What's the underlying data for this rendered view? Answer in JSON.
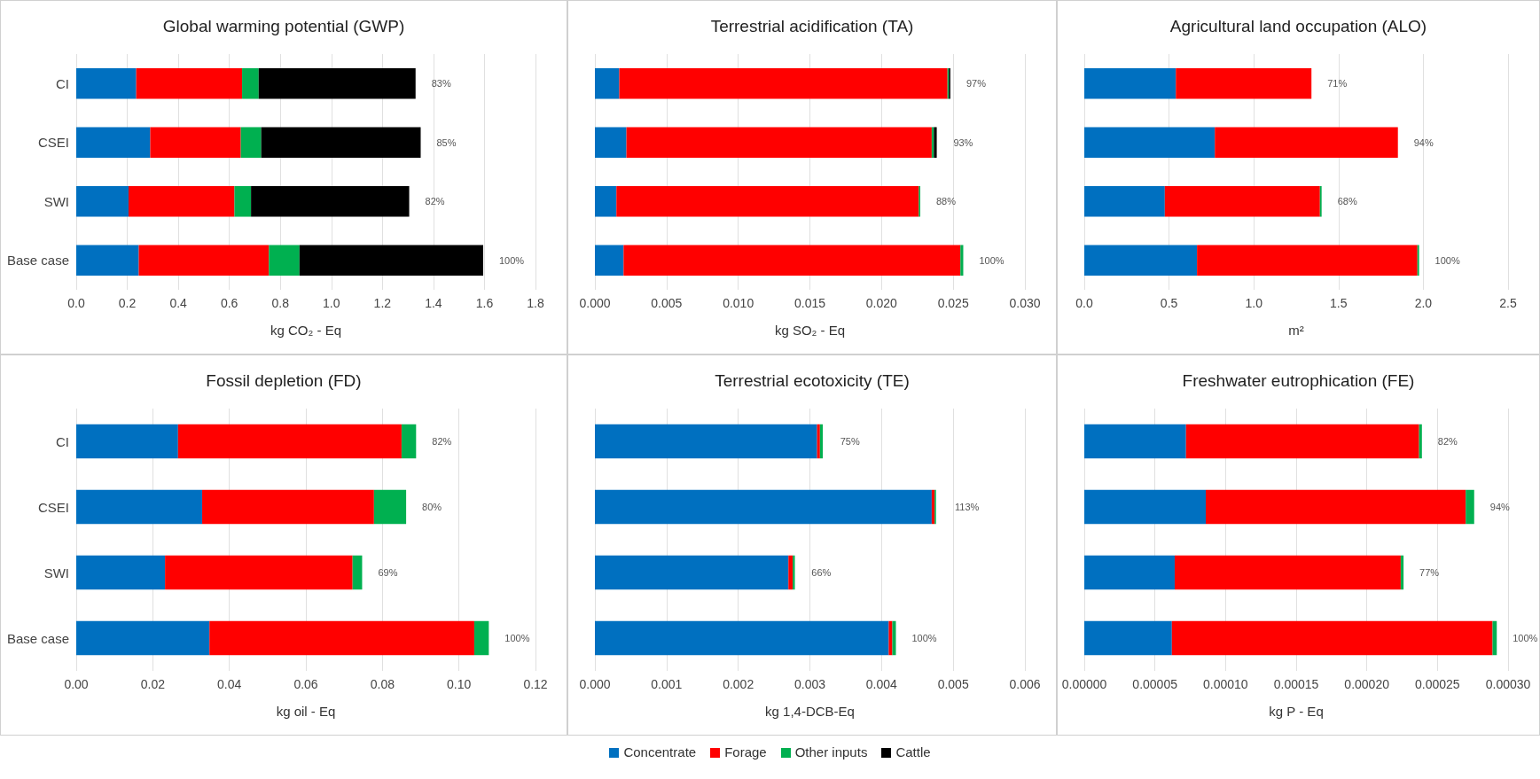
{
  "chart_data": [
    {
      "type": "bar",
      "orientation": "horizontal",
      "stacked": true,
      "title": "Global warming potential (GWP)",
      "xlabel": "kg CO₂ - Eq",
      "categories": [
        "CI",
        "CSEI",
        "SWI",
        "Base case"
      ],
      "series": [
        {
          "name": "Concentrate",
          "color": "#0070c0",
          "values": [
            0.235,
            0.29,
            0.205,
            0.245
          ]
        },
        {
          "name": "Forage",
          "color": "#ff0000",
          "values": [
            0.415,
            0.355,
            0.415,
            0.51
          ]
        },
        {
          "name": "Other inputs",
          "color": "#00b050",
          "values": [
            0.065,
            0.08,
            0.065,
            0.12
          ]
        },
        {
          "name": "Cattle",
          "color": "#000000",
          "values": [
            0.615,
            0.625,
            0.62,
            0.72
          ]
        }
      ],
      "xlim": [
        0,
        1.8
      ],
      "xticks": [
        {
          "value": 0,
          "label": "0.0"
        },
        {
          "value": 0.2,
          "label": "0.2"
        },
        {
          "value": 0.4,
          "label": "0.4"
        },
        {
          "value": 0.6,
          "label": "0.6"
        },
        {
          "value": 0.8,
          "label": "0.8"
        },
        {
          "value": 1,
          "label": "1.0"
        },
        {
          "value": 1.2,
          "label": "1.2"
        },
        {
          "value": 1.4,
          "label": "1.4"
        },
        {
          "value": 1.6,
          "label": "1.6"
        },
        {
          "value": 1.8,
          "label": "1.8"
        }
      ],
      "annotations": [
        {
          "text": "83%",
          "x": 1.33,
          "y": "CI"
        },
        {
          "text": "85%",
          "x": 1.35,
          "y": "CSEI"
        },
        {
          "text": "82%",
          "x": 1.305,
          "y": "SWI"
        },
        {
          "text": "100%",
          "x": 1.595,
          "y": "Base case"
        }
      ],
      "grid": "x",
      "legend": "bottom"
    },
    {
      "type": "bar",
      "orientation": "horizontal",
      "stacked": true,
      "title": "Terrestrial acidification (TA)",
      "xlabel": "kg SO₂ - Eq",
      "categories": [
        null,
        null,
        null,
        null
      ],
      "series": [
        {
          "color": "#0070c0",
          "values": [
            0.0017,
            0.0022,
            0.0015,
            0.002
          ]
        },
        {
          "color": "#ff0000",
          "values": [
            0.0229,
            0.0213,
            0.0211,
            0.0235
          ]
        },
        {
          "color": "#00b050",
          "values": [
            0.0001,
            0.00015,
            0.0001,
            0.0002
          ]
        },
        {
          "color": "#000000",
          "values": [
            0.0001,
            0.0002,
            null,
            null
          ]
        }
      ],
      "xlim": [
        0,
        0.03
      ],
      "xticks": [
        {
          "value": 0,
          "label": "0.000"
        },
        {
          "value": 0.005,
          "label": "0.005"
        },
        {
          "value": 0.01,
          "label": "0.010"
        },
        {
          "value": 0.015,
          "label": "0.015"
        },
        {
          "value": 0.02,
          "label": "0.020"
        },
        {
          "value": 0.025,
          "label": "0.025"
        },
        {
          "value": 0.03,
          "label": "0.030"
        }
      ],
      "annotations": [
        {
          "text": "97%",
          "x": 0.0248
        },
        {
          "text": "93%",
          "x": 0.0239
        },
        {
          "text": "88%",
          "x": 0.0227
        },
        {
          "text": "100%",
          "x": 0.0257
        }
      ],
      "grid": "x",
      "tick_labels": "x"
    },
    {
      "type": "bar",
      "orientation": "horizontal",
      "stacked": true,
      "title": "Agricultural land occupation (ALO)",
      "xlabel": "m²",
      "categories": [
        null,
        null,
        null,
        null
      ],
      "series": [
        {
          "color": "#0070c0",
          "values": [
            0.54,
            0.77,
            0.475,
            0.665
          ]
        },
        {
          "color": "#ff0000",
          "values": [
            0.8,
            1.08,
            0.915,
            1.3
          ]
        },
        {
          "color": "#00b050",
          "values": [
            null,
            null,
            0.01,
            0.01
          ]
        }
      ],
      "xlim": [
        0,
        2.5
      ],
      "xticks": [
        {
          "value": 0,
          "label": "0.0"
        },
        {
          "value": 0.5,
          "label": "0.5"
        },
        {
          "value": 1,
          "label": "1.0"
        },
        {
          "value": 1.5,
          "label": "1.5"
        },
        {
          "value": 2,
          "label": "2.0"
        },
        {
          "value": 2.5,
          "label": "2.5"
        }
      ],
      "annotations": [
        {
          "text": "71%",
          "x": 1.34
        },
        {
          "text": "94%",
          "x": 1.85
        },
        {
          "text": "68%",
          "x": 1.4
        },
        {
          "text": "100%",
          "x": 1.975
        }
      ],
      "grid": "x",
      "tick_labels": "x"
    },
    {
      "type": "bar",
      "orientation": "horizontal",
      "stacked": true,
      "title": "Fossil depletion (FD)",
      "xlabel": "kg oil - Eq",
      "categories": [
        "CI",
        "CSEI",
        "SWI",
        "Base case"
      ],
      "series": [
        {
          "color": "#0070c0",
          "values": [
            0.0266,
            0.0329,
            0.0232,
            0.0348
          ]
        },
        {
          "color": "#ff0000",
          "values": [
            0.0584,
            0.0449,
            0.049,
            0.0692
          ]
        },
        {
          "color": "#00b050",
          "values": [
            0.0038,
            0.0084,
            0.0025,
            0.0038
          ]
        }
      ],
      "xlim": [
        0,
        0.12
      ],
      "xticks": [
        {
          "value": 0,
          "label": "0.00"
        },
        {
          "value": 0.02,
          "label": "0.02"
        },
        {
          "value": 0.04,
          "label": "0.04"
        },
        {
          "value": 0.06,
          "label": "0.06"
        },
        {
          "value": 0.08,
          "label": "0.08"
        },
        {
          "value": 0.1,
          "label": "0.10"
        },
        {
          "value": 0.12,
          "label": "0.12"
        }
      ],
      "annotations": [
        {
          "text": "82%",
          "x": 0.0888,
          "y": "CI"
        },
        {
          "text": "80%",
          "x": 0.0862,
          "y": "CSEI"
        },
        {
          "text": "69%",
          "x": 0.0747,
          "y": "SWI"
        },
        {
          "text": "100%",
          "x": 0.1078,
          "y": "Base case"
        }
      ],
      "grid": "x"
    },
    {
      "type": "bar",
      "orientation": "horizontal",
      "stacked": true,
      "title": "Terrestrial ecotoxicity (TE)",
      "xlabel": "kg 1,4-DCB-Eq",
      "categories": [
        null,
        null,
        null,
        null
      ],
      "series": [
        {
          "color": "#0070c0",
          "values": [
            0.0031,
            0.0047,
            0.0027,
            0.0041
          ]
        },
        {
          "color": "#ff0000",
          "values": [
            4e-05,
            4e-05,
            6e-05,
            5e-05
          ]
        },
        {
          "color": "#00b050",
          "values": [
            4e-05,
            2e-05,
            3e-05,
            5e-05
          ]
        }
      ],
      "xlim": [
        0,
        0.006
      ],
      "xticks": [
        {
          "value": 0,
          "label": "0.000"
        },
        {
          "value": 0.001,
          "label": "0.001"
        },
        {
          "value": 0.002,
          "label": "0.002"
        },
        {
          "value": 0.003,
          "label": "0.003"
        },
        {
          "value": 0.004,
          "label": "0.004"
        },
        {
          "value": 0.005,
          "label": "0.005"
        },
        {
          "value": 0.006,
          "label": "0.006"
        }
      ],
      "annotations": [
        {
          "text": "75%",
          "x": 0.0032
        },
        {
          "text": "113%",
          "x": 0.0048
        },
        {
          "text": "66%",
          "x": 0.0028
        },
        {
          "text": "100%",
          "x": 0.0042
        }
      ],
      "grid": "x",
      "tick_labels": "x"
    },
    {
      "type": "bar",
      "orientation": "horizontal",
      "stacked": true,
      "title": "Freshwater eutrophication (FE)",
      "xlabel": "kg P - Eq",
      "categories": [
        null,
        null,
        null,
        null
      ],
      "series": [
        {
          "color": "#0070c0",
          "values": [
            7.2e-05,
            8.6e-05,
            6.4e-05,
            6.2e-05
          ]
        },
        {
          "color": "#ff0000",
          "values": [
            0.000165,
            0.000184,
            0.00016,
            0.000227
          ]
        },
        {
          "color": "#00b050",
          "values": [
            2e-06,
            6e-06,
            2e-06,
            3e-06
          ]
        }
      ],
      "xlim": [
        0,
        0.0003
      ],
      "xticks": [
        {
          "value": 0,
          "label": "0.00000"
        },
        {
          "value": 5e-05,
          "label": "0.00005"
        },
        {
          "value": 0.0001,
          "label": "0.00010"
        },
        {
          "value": 0.00015,
          "label": "0.00015"
        },
        {
          "value": 0.0002,
          "label": "0.00020"
        },
        {
          "value": 0.00025,
          "label": "0.00025"
        },
        {
          "value": 0.0003,
          "label": "0.00030"
        }
      ],
      "annotations": [
        {
          "text": "82%",
          "x": 0.000239
        },
        {
          "text": "94%",
          "x": 0.000276
        },
        {
          "text": "77%",
          "x": 0.000226
        },
        {
          "text": "100%",
          "x": 0.000292
        }
      ],
      "grid": "x",
      "tick_labels": "x"
    }
  ]
}
